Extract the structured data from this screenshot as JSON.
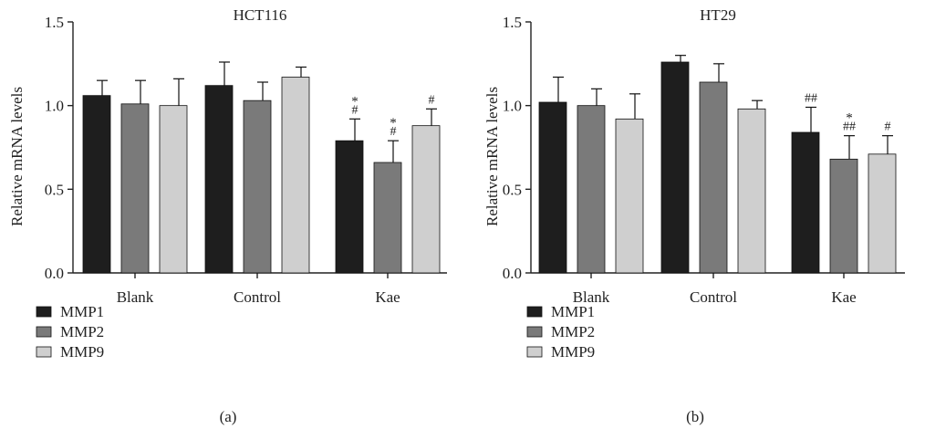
{
  "colors": {
    "MMP1": "#1e1e1e",
    "MMP2": "#7a7a7a",
    "MMP9": "#cfcfcf",
    "axis": "#222222"
  },
  "chart_data": [
    {
      "type": "bar",
      "title": "HCT116",
      "panel_label": "(a)",
      "xlabel": "",
      "ylabel": "Relative mRNA levels",
      "ylim": [
        0,
        1.5
      ],
      "yticks": [
        "0.0",
        "0.5",
        "1.0",
        "1.5"
      ],
      "yticks_values": [
        0,
        0.5,
        1.0,
        1.5
      ],
      "categories": [
        "Blank",
        "Control",
        "Kae"
      ],
      "legend_position": "bottom-left",
      "series": [
        {
          "name": "MMP1",
          "values": [
            1.06,
            1.12,
            0.79
          ],
          "errors": [
            0.09,
            0.14,
            0.13
          ],
          "annotations": [
            "",
            "",
            "*\n#"
          ]
        },
        {
          "name": "MMP2",
          "values": [
            1.01,
            1.03,
            0.66
          ],
          "errors": [
            0.14,
            0.11,
            0.13
          ],
          "annotations": [
            "",
            "",
            "*\n#"
          ]
        },
        {
          "name": "MMP9",
          "values": [
            1.0,
            1.17,
            0.88
          ],
          "errors": [
            0.16,
            0.06,
            0.1
          ],
          "annotations": [
            "",
            "",
            "#"
          ]
        }
      ]
    },
    {
      "type": "bar",
      "title": "HT29",
      "panel_label": "(b)",
      "xlabel": "",
      "ylabel": "Relative mRNA levels",
      "ylim": [
        0,
        1.5
      ],
      "yticks": [
        "0.0",
        "0.5",
        "1.0",
        "1.5"
      ],
      "yticks_values": [
        0,
        0.5,
        1.0,
        1.5
      ],
      "categories": [
        "Blank",
        "Control",
        "Kae"
      ],
      "legend_position": "bottom-left",
      "series": [
        {
          "name": "MMP1",
          "values": [
            1.02,
            1.26,
            0.84
          ],
          "errors": [
            0.15,
            0.04,
            0.15
          ],
          "annotations": [
            "",
            "",
            "##"
          ]
        },
        {
          "name": "MMP2",
          "values": [
            1.0,
            1.14,
            0.68
          ],
          "errors": [
            0.1,
            0.11,
            0.14
          ],
          "annotations": [
            "",
            "",
            "*\n##"
          ]
        },
        {
          "name": "MMP9",
          "values": [
            0.92,
            0.98,
            0.71
          ],
          "errors": [
            0.15,
            0.05,
            0.11
          ],
          "annotations": [
            "",
            "",
            "#"
          ]
        }
      ]
    }
  ]
}
